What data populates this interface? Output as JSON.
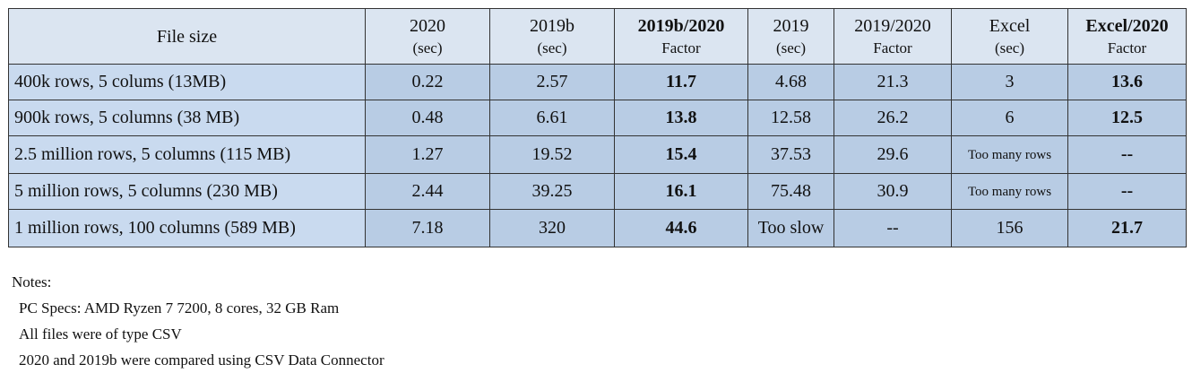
{
  "table": {
    "header": [
      {
        "title": "File size"
      },
      {
        "title": "2020",
        "sub": "(sec)"
      },
      {
        "title": "2019b",
        "sub": "(sec)"
      },
      {
        "title": "2019b/2020",
        "sub": "Factor"
      },
      {
        "title": "2019",
        "sub": "(sec)"
      },
      {
        "title": "2019/2020",
        "sub": "Factor"
      },
      {
        "title": "Excel",
        "sub": "(sec)"
      },
      {
        "title": "Excel/2020",
        "sub": "Factor"
      }
    ],
    "rows": [
      [
        "400k rows, 5 colums (13MB)",
        "0.22",
        "2.57",
        "11.7",
        "4.68",
        "21.3",
        "3",
        "13.6"
      ],
      [
        "900k rows, 5 columns (38 MB)",
        "0.48",
        "6.61",
        "13.8",
        "12.58",
        "26.2",
        "6",
        "12.5"
      ],
      [
        "2.5 million rows, 5 columns (115 MB)",
        "1.27",
        "19.52",
        "15.4",
        "37.53",
        "29.6",
        "Too many rows",
        "--"
      ],
      [
        "5 million rows, 5 columns (230 MB)",
        "2.44",
        "39.25",
        "16.1",
        "75.48",
        "30.9",
        "Too many rows",
        "--"
      ],
      [
        "1 million rows, 100 columns (589 MB)",
        "7.18",
        "320",
        "44.6",
        "Too slow",
        "--",
        "156",
        "21.7"
      ]
    ]
  },
  "notes": {
    "title": "Notes:",
    "lines": [
      "PC Specs: AMD Ryzen 7 7200, 8 cores, 32 GB Ram",
      "All files were of type CSV",
      "2020 and 2019b  were compared using CSV Data Connector"
    ]
  }
}
